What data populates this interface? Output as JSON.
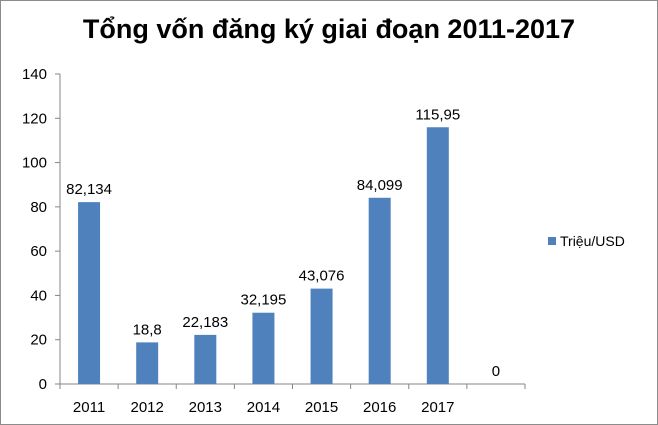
{
  "chart_data": {
    "type": "bar",
    "title": "Tổng vốn đăng ký giai đoạn 2011-2017",
    "categories": [
      "2011",
      "2012",
      "2013",
      "2014",
      "2015",
      "2016",
      "2017",
      ""
    ],
    "series": [
      {
        "name": "Triệu/USD",
        "values": [
          82.134,
          18.8,
          22.183,
          32.195,
          43.076,
          84.099,
          115.95,
          0
        ],
        "labels": [
          "82,134",
          "18,8",
          "22,183",
          "32,195",
          "43,076",
          "84,099",
          "115,95",
          "0"
        ],
        "color": "#4f81bd"
      }
    ],
    "ylim": [
      0,
      140
    ],
    "yticks": [
      "0",
      "20",
      "40",
      "60",
      "80",
      "100",
      "120",
      "140"
    ],
    "grid": false,
    "legend_position": "right"
  }
}
